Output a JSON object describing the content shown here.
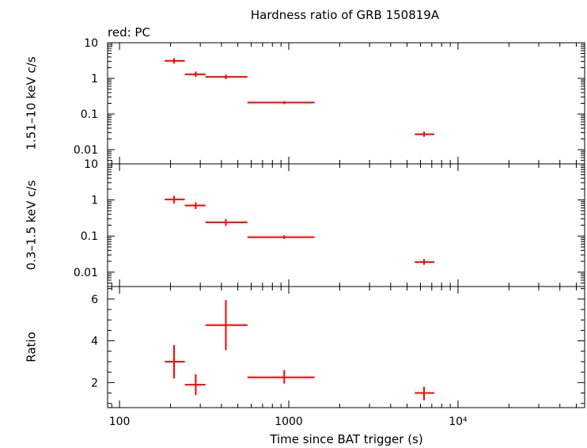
{
  "title": "Hardness ratio of GRB 150819A",
  "legend_note": "red: PC",
  "xlabel": "Time since BAT trigger (s)",
  "x_tick_labels": [
    "100",
    "1000",
    "10⁴"
  ],
  "chart_data": [
    {
      "type": "scatter",
      "panel": "top",
      "ylabel": "1.51–10 keV c/s",
      "x_scale": "log",
      "y_scale": "log",
      "xlim": [
        85,
        56000
      ],
      "ylim": [
        0.004,
        10
      ],
      "y_tick_labels": [
        "10",
        "1",
        "0.1",
        "0.01"
      ],
      "y_tick_values": [
        10,
        1,
        0.1,
        0.01
      ],
      "color": "#ff0000",
      "series": [
        {
          "points": [
            {
              "x": 210,
              "x_lo": 185,
              "x_hi": 243,
              "y": 3.1,
              "y_lo": 2.6,
              "y_hi": 3.7
            },
            {
              "x": 282,
              "x_lo": 243,
              "x_hi": 322,
              "y": 1.3,
              "y_lo": 1.1,
              "y_hi": 1.55
            },
            {
              "x": 425,
              "x_lo": 322,
              "x_hi": 570,
              "y": 1.1,
              "y_lo": 0.95,
              "y_hi": 1.27
            },
            {
              "x": 940,
              "x_lo": 570,
              "x_hi": 1420,
              "y": 0.21,
              "y_lo": 0.19,
              "y_hi": 0.23
            },
            {
              "x": 6300,
              "x_lo": 5550,
              "x_hi": 7250,
              "y": 0.027,
              "y_lo": 0.023,
              "y_hi": 0.032
            }
          ]
        }
      ]
    },
    {
      "type": "scatter",
      "panel": "middle",
      "ylabel": "0.3–1.5 keV c/s",
      "x_scale": "log",
      "y_scale": "log",
      "xlim": [
        85,
        56000
      ],
      "ylim": [
        0.004,
        10
      ],
      "y_tick_labels": [
        "10",
        "1",
        "0.1",
        "0.01"
      ],
      "y_tick_values": [
        10,
        1,
        0.1,
        0.01
      ],
      "color": "#ff0000",
      "series": [
        {
          "points": [
            {
              "x": 210,
              "x_lo": 185,
              "x_hi": 243,
              "y": 1.03,
              "y_lo": 0.8,
              "y_hi": 1.3
            },
            {
              "x": 282,
              "x_lo": 243,
              "x_hi": 322,
              "y": 0.7,
              "y_lo": 0.56,
              "y_hi": 0.86
            },
            {
              "x": 425,
              "x_lo": 322,
              "x_hi": 570,
              "y": 0.24,
              "y_lo": 0.19,
              "y_hi": 0.3
            },
            {
              "x": 940,
              "x_lo": 570,
              "x_hi": 1420,
              "y": 0.093,
              "y_lo": 0.083,
              "y_hi": 0.105
            },
            {
              "x": 6300,
              "x_lo": 5550,
              "x_hi": 7250,
              "y": 0.019,
              "y_lo": 0.016,
              "y_hi": 0.023
            }
          ]
        }
      ]
    },
    {
      "type": "scatter",
      "panel": "bottom",
      "ylabel": "Ratio",
      "x_scale": "log",
      "y_scale": "linear",
      "xlim": [
        85,
        56000
      ],
      "ylim": [
        0.8,
        6.6
      ],
      "y_tick_labels": [
        "2",
        "4",
        "6"
      ],
      "y_tick_values": [
        2,
        4,
        6
      ],
      "color": "#ff0000",
      "series": [
        {
          "points": [
            {
              "x": 210,
              "x_lo": 185,
              "x_hi": 243,
              "y": 3.0,
              "y_lo": 2.2,
              "y_hi": 3.8
            },
            {
              "x": 282,
              "x_lo": 243,
              "x_hi": 322,
              "y": 1.9,
              "y_lo": 1.4,
              "y_hi": 2.4
            },
            {
              "x": 425,
              "x_lo": 322,
              "x_hi": 570,
              "y": 4.75,
              "y_lo": 3.55,
              "y_hi": 5.95
            },
            {
              "x": 940,
              "x_lo": 570,
              "x_hi": 1420,
              "y": 2.25,
              "y_lo": 1.95,
              "y_hi": 2.6
            },
            {
              "x": 6300,
              "x_lo": 5550,
              "x_hi": 7250,
              "y": 1.5,
              "y_lo": 1.15,
              "y_hi": 1.8
            }
          ]
        }
      ]
    }
  ]
}
